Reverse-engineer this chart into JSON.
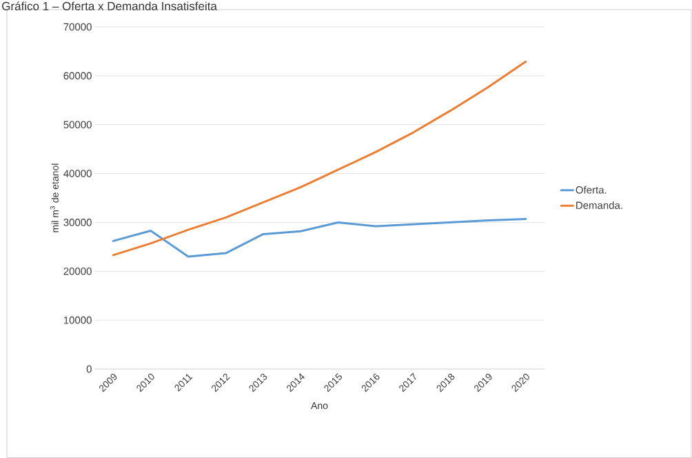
{
  "chart_data": {
    "type": "line",
    "title": "Gráfico 1 – Oferta x Demanda Insatisfeita",
    "xlabel": "Ano",
    "ylabel": "mil m$^{3}$ de etanol",
    "categories": [
      "2009",
      "2010",
      "2011",
      "2012",
      "2013",
      "2014",
      "2015",
      "2016",
      "2017",
      "2018",
      "2019",
      "2020"
    ],
    "series": [
      {
        "name": "Oferta.",
        "color": "#5b9bd5",
        "values": [
          26200,
          28300,
          23000,
          23700,
          27600,
          28200,
          30000,
          29200,
          29600,
          30000,
          30400,
          30700
        ]
      },
      {
        "name": "Demanda.",
        "color": "#ed7d31",
        "values": [
          23300,
          25700,
          28500,
          31000,
          34100,
          37200,
          40800,
          44400,
          48400,
          52900,
          57700,
          62900
        ]
      }
    ],
    "ylim": [
      0,
      70000
    ],
    "yticks": [
      0,
      10000,
      20000,
      30000,
      40000,
      50000,
      60000,
      70000
    ],
    "grid": "y",
    "legend": "right",
    "marker": "none",
    "line_style": "solid"
  }
}
